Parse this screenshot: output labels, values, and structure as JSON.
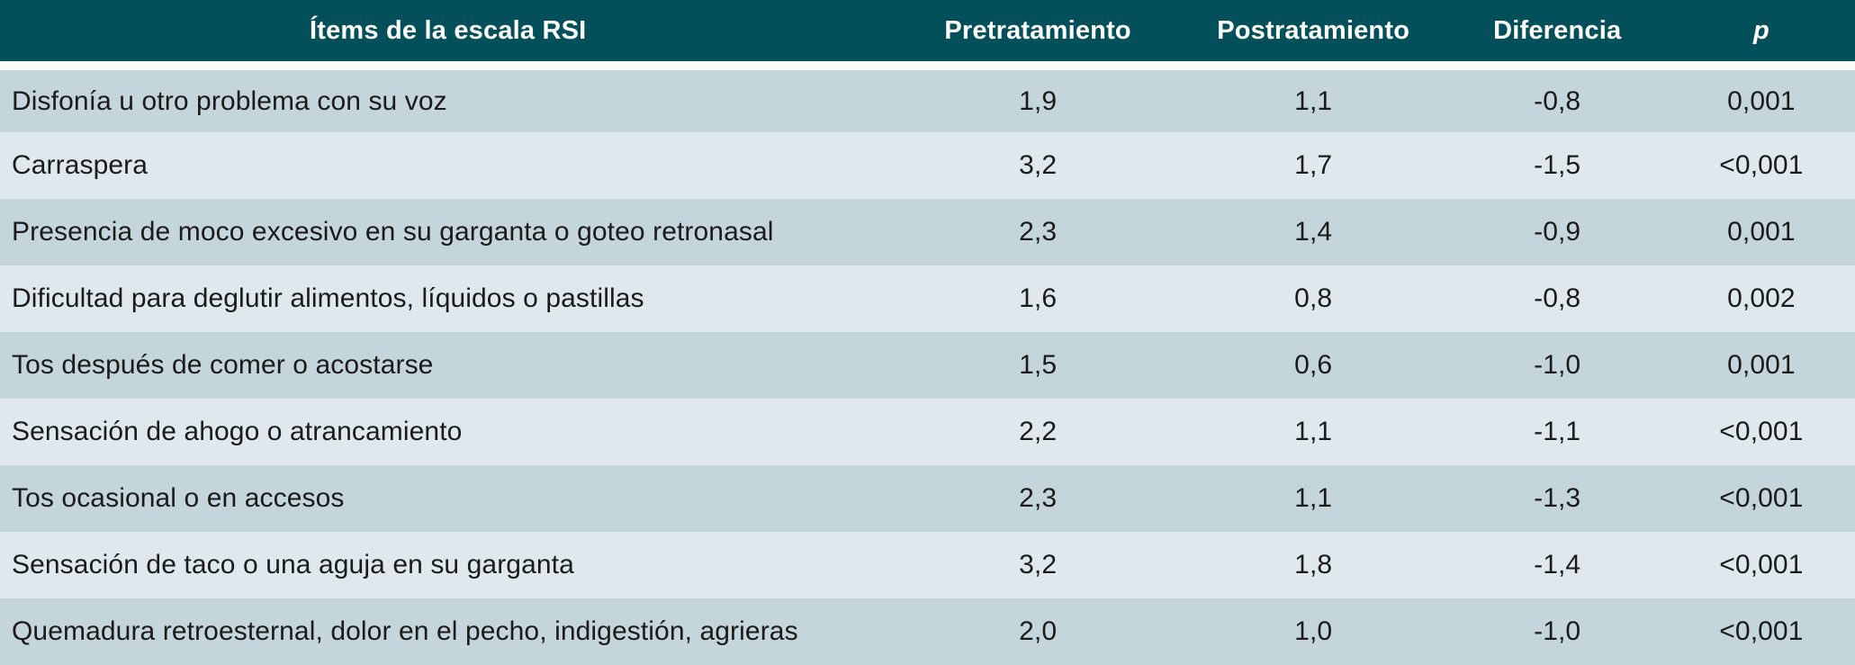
{
  "colors": {
    "header_bg": "#04505a",
    "header_text": "#ffffff",
    "row_odd_bg": "#c4d5db",
    "row_even_bg": "#dfe9ed",
    "body_text": "#1b1b1b",
    "separator": "#ffffff"
  },
  "table": {
    "columns": [
      {
        "key": "item",
        "label": "Ítems de la escala RSI"
      },
      {
        "key": "pre",
        "label": "Pretratamiento"
      },
      {
        "key": "post",
        "label": "Postratamiento"
      },
      {
        "key": "diff",
        "label": "Diferencia"
      },
      {
        "key": "p",
        "label": "p"
      }
    ],
    "rows": [
      {
        "item": "Disfonía u otro problema con su voz",
        "pre": "1,9",
        "post": "1,1",
        "diff": "-0,8",
        "p": "0,001"
      },
      {
        "item": "Carraspera",
        "pre": "3,2",
        "post": "1,7",
        "diff": "-1,5",
        "p": "<0,001"
      },
      {
        "item": "Presencia de moco excesivo en su garganta o goteo retronasal",
        "pre": "2,3",
        "post": "1,4",
        "diff": "-0,9",
        "p": "0,001"
      },
      {
        "item": "Dificultad para deglutir alimentos, líquidos o pastillas",
        "pre": "1,6",
        "post": "0,8",
        "diff": "-0,8",
        "p": "0,002"
      },
      {
        "item": "Tos después de comer o acostarse",
        "pre": "1,5",
        "post": "0,6",
        "diff": "-1,0",
        "p": "0,001"
      },
      {
        "item": "Sensación de ahogo o atrancamiento",
        "pre": "2,2",
        "post": "1,1",
        "diff": "-1,1",
        "p": "<0,001"
      },
      {
        "item": "Tos ocasional o en accesos",
        "pre": "2,3",
        "post": "1,1",
        "diff": "-1,3",
        "p": "<0,001"
      },
      {
        "item": "Sensación de taco o una aguja en su garganta",
        "pre": "3,2",
        "post": "1,8",
        "diff": "-1,4",
        "p": "<0,001"
      },
      {
        "item": "Quemadura retroesternal, dolor en el pecho, indigestión, agrieras",
        "pre": "2,0",
        "post": "1,0",
        "diff": "-1,0",
        "p": "<0,001"
      }
    ]
  },
  "chart_data": {
    "type": "table",
    "title": "Ítems de la escala RSI",
    "categories": [
      "Disfonía u otro problema con su voz",
      "Carraspera",
      "Presencia de moco excesivo en su garganta o goteo retronasal",
      "Dificultad para deglutir alimentos, líquidos o pastillas",
      "Tos después de comer o acostarse",
      "Sensación de ahogo o atrancamiento",
      "Tos ocasional o en accesos",
      "Sensación de taco o una aguja en su garganta",
      "Quemadura retroesternal, dolor en el pecho, indigestión, agrieras"
    ],
    "series": [
      {
        "name": "Pretratamiento",
        "values": [
          1.9,
          3.2,
          2.3,
          1.6,
          1.5,
          2.2,
          2.3,
          3.2,
          2.0
        ]
      },
      {
        "name": "Postratamiento",
        "values": [
          1.1,
          1.7,
          1.4,
          0.8,
          0.6,
          1.1,
          1.1,
          1.8,
          1.0
        ]
      },
      {
        "name": "Diferencia",
        "values": [
          -0.8,
          -1.5,
          -0.9,
          -0.8,
          -1.0,
          -1.1,
          -1.3,
          -1.4,
          -1.0
        ]
      },
      {
        "name": "p",
        "values": [
          "0,001",
          "<0,001",
          "0,001",
          "0,002",
          "0,001",
          "<0,001",
          "<0,001",
          "<0,001",
          "<0,001"
        ]
      }
    ]
  }
}
